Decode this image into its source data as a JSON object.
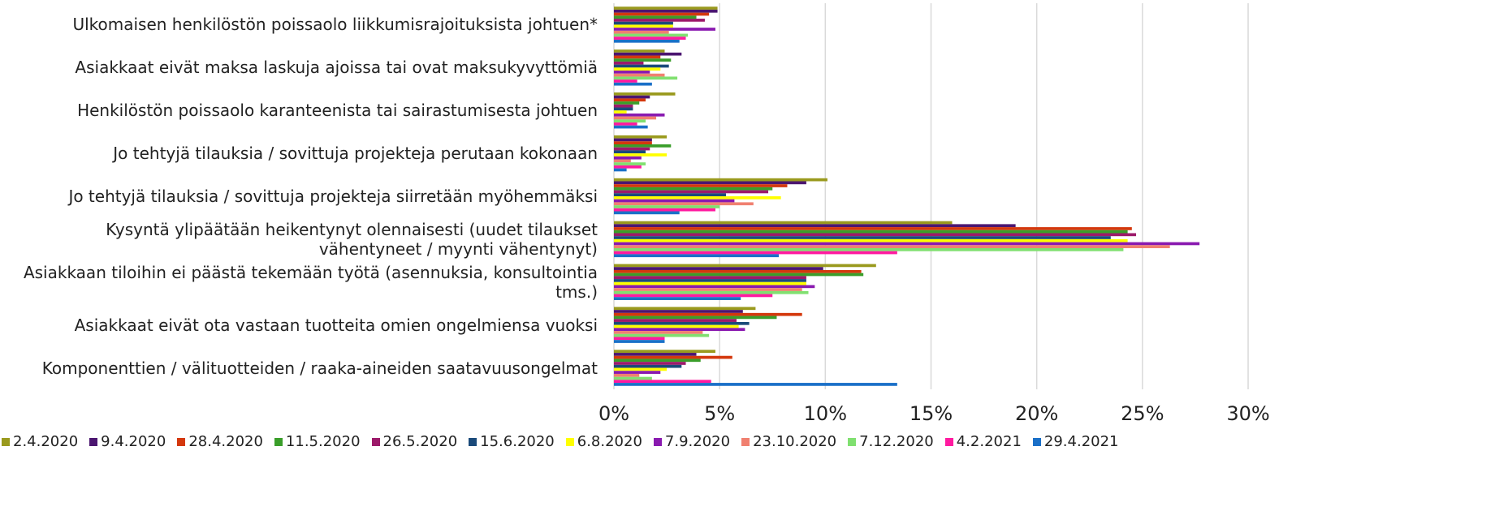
{
  "chart_data": {
    "type": "hbar",
    "categories": [
      "Ulkomaisen henkilöstön poissaolo liikkumisrajoituksista johtuen*",
      "Asiakkaat eivät maksa laskuja ajoissa tai ovat maksukyvyttömiä",
      "Henkilöstön poissaolo karanteenista tai sairastumisesta johtuen",
      "Jo tehtyjä tilauksia / sovittuja projekteja perutaan kokonaan",
      "Jo tehtyjä tilauksia / sovittuja projekteja siirretään myöhemmäksi",
      "Kysyntä ylipäätään heikentynyt olennaisesti (uudet tilaukset vähentyneet / myynti vähentynyt)",
      "Asiakkaan tiloihin ei päästä tekemään työtä (asennuksia, konsultointia tms.)",
      "Asiakkaat eivät ota vastaan tuotteita omien ongelmiensa vuoksi",
      "Komponenttien / välituotteiden / raaka-aineiden saatavuusongelmat"
    ],
    "series": [
      {
        "name": "2.4.2020",
        "color": "#9a9a1e",
        "values": [
          4.9,
          2.4,
          2.9,
          2.5,
          10.1,
          16.0,
          12.4,
          6.7,
          4.8
        ]
      },
      {
        "name": "9.4.2020",
        "color": "#4b1670",
        "values": [
          4.9,
          3.2,
          1.7,
          1.8,
          9.1,
          19.0,
          9.9,
          6.1,
          3.9
        ]
      },
      {
        "name": "28.4.2020",
        "color": "#d4380d",
        "values": [
          4.5,
          2.2,
          1.5,
          1.8,
          8.2,
          24.5,
          11.7,
          8.9,
          5.6
        ]
      },
      {
        "name": "11.5.2020",
        "color": "#3a9e2a",
        "values": [
          3.9,
          2.7,
          1.2,
          2.7,
          7.5,
          24.3,
          11.8,
          7.7,
          4.1
        ]
      },
      {
        "name": "26.5.2020",
        "color": "#9c1a6a",
        "values": [
          4.3,
          1.4,
          0.9,
          1.7,
          7.3,
          24.7,
          9.1,
          5.8,
          3.4
        ]
      },
      {
        "name": "15.6.2020",
        "color": "#1a4a7a",
        "values": [
          2.8,
          2.6,
          0.9,
          1.5,
          5.3,
          23.5,
          9.1,
          6.4,
          3.2
        ]
      },
      {
        "name": "6.8.2020",
        "color": "#ffff00",
        "values": [
          2.8,
          2.2,
          0.6,
          2.5,
          7.9,
          24.3,
          9.1,
          5.9,
          2.5
        ]
      },
      {
        "name": "7.9.2020",
        "color": "#8a1ab0",
        "values": [
          4.8,
          1.7,
          2.4,
          1.3,
          5.7,
          27.7,
          9.5,
          6.2,
          2.2
        ]
      },
      {
        "name": "23.10.2020",
        "color": "#f08070",
        "values": [
          2.6,
          2.4,
          2.0,
          0.8,
          6.6,
          26.3,
          8.9,
          4.2,
          1.2
        ]
      },
      {
        "name": "7.12.2020",
        "color": "#80e070",
        "values": [
          3.5,
          3.0,
          1.5,
          1.5,
          5.0,
          24.1,
          9.2,
          4.5,
          1.8
        ]
      },
      {
        "name": "4.2.2021",
        "color": "#ff1aa0",
        "values": [
          3.4,
          1.1,
          1.1,
          1.3,
          4.8,
          13.4,
          7.5,
          2.4,
          4.6
        ]
      },
      {
        "name": "29.4.2021",
        "color": "#1a70c8",
        "values": [
          3.1,
          1.8,
          1.6,
          0.6,
          3.1,
          7.8,
          6.0,
          2.4,
          13.4
        ]
      }
    ],
    "xlim": [
      0,
      30
    ],
    "xticks": [
      {
        "value": 0,
        "label": "0%"
      },
      {
        "value": 5,
        "label": "5%"
      },
      {
        "value": 10,
        "label": "10%"
      },
      {
        "value": 15,
        "label": "15%"
      },
      {
        "value": 20,
        "label": "20%"
      },
      {
        "value": 25,
        "label": "25%"
      },
      {
        "value": 30,
        "label": "30%"
      }
    ],
    "grid": true
  }
}
